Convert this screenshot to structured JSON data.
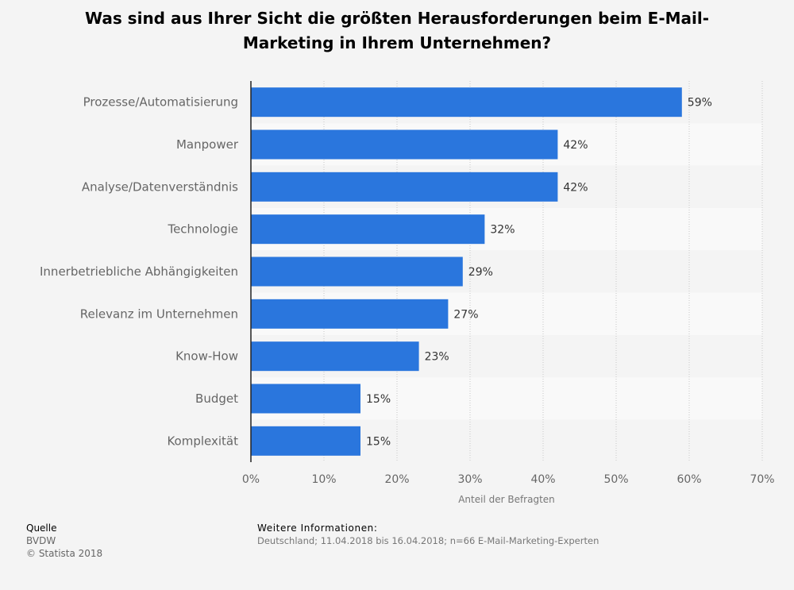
{
  "chart_data": {
    "type": "bar",
    "orientation": "horizontal",
    "title": "Was sind aus Ihrer Sicht die größten Herausforderungen beim E-Mail-Marketing in Ihrem Unternehmen?",
    "categories": [
      "Prozesse/Automatisierung",
      "Manpower",
      "Analyse/Datenverständnis",
      "Technologie",
      "Innerbetriebliche Abhängigkeiten",
      "Relevanz im Unternehmen",
      "Know-How",
      "Budget",
      "Komplexität"
    ],
    "values": [
      59,
      42,
      42,
      32,
      29,
      27,
      23,
      15,
      15
    ],
    "value_labels": [
      "59%",
      "42%",
      "42%",
      "32%",
      "29%",
      "27%",
      "23%",
      "15%",
      "15%"
    ],
    "xlabel": "Anteil der Befragten",
    "xlim": [
      0,
      70
    ],
    "xticks": [
      0,
      10,
      20,
      30,
      40,
      50,
      60,
      70
    ],
    "xtick_labels": [
      "0%",
      "10%",
      "20%",
      "30%",
      "40%",
      "50%",
      "60%",
      "70%"
    ],
    "grid": true,
    "bar_color": "#2a76dd"
  },
  "footer": {
    "source_heading": "Quelle",
    "source": "BVDW",
    "copyright": "© Statista 2018",
    "info_heading": "Weitere Informationen:",
    "info": "Deutschland; 11.04.2018 bis 16.04.2018; n=66 E-Mail-Marketing-Experten"
  }
}
